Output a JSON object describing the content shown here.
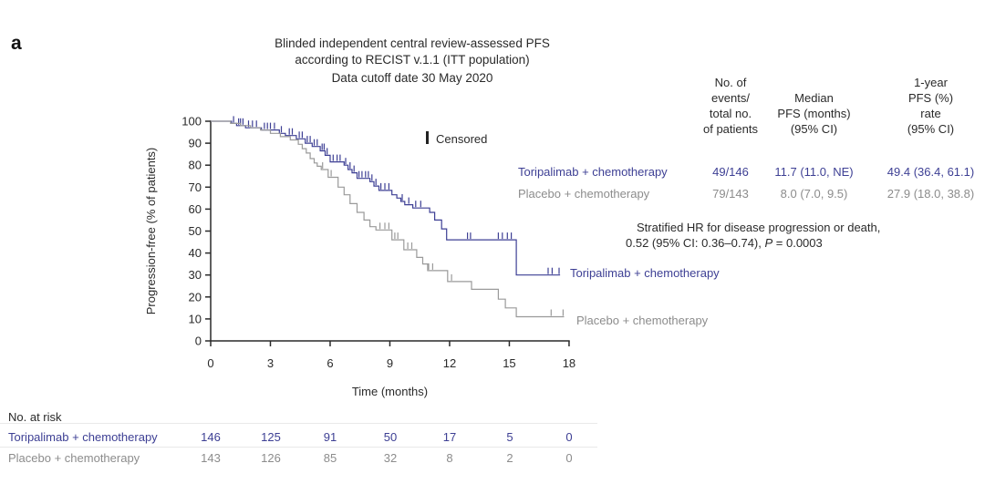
{
  "panel_label": "a",
  "colors": {
    "dark": "#2a2a2a",
    "toripalimab": "#3d3f94",
    "placebo_text": "#8c8c8c",
    "placebo_curve": "#9a9a9a"
  },
  "chart_data": {
    "type": "line",
    "subtype": "kaplan-meier-step",
    "title_lines": [
      "Blinded independent central review-assessed PFS",
      "according to RECIST v.1.1 (ITT population)",
      "Data cutoff date 30 May 2020"
    ],
    "censored_legend": "Censored",
    "x": {
      "label": "Time (months)",
      "ticks": [
        0,
        3,
        6,
        9,
        12,
        15,
        18
      ],
      "range": [
        0,
        18
      ]
    },
    "y": {
      "label": "Progression-free (% of patients)",
      "ticks": [
        0,
        10,
        20,
        30,
        40,
        50,
        60,
        70,
        80,
        90,
        100
      ],
      "range": [
        0,
        100
      ]
    },
    "grid": false,
    "series": [
      {
        "name": "Toripalimab + chemotherapy",
        "color": "#3d3f94",
        "points": [
          [
            0,
            100
          ],
          [
            1.05,
            99
          ],
          [
            1.3,
            98
          ],
          [
            1.75,
            97
          ],
          [
            2.55,
            96
          ],
          [
            3.45,
            94.5
          ],
          [
            3.75,
            93.5
          ],
          [
            4.3,
            92
          ],
          [
            4.75,
            90
          ],
          [
            5.1,
            88.5
          ],
          [
            5.5,
            86.5
          ],
          [
            5.75,
            84.5
          ],
          [
            6.0,
            81.5
          ],
          [
            6.7,
            80
          ],
          [
            6.9,
            78
          ],
          [
            7.1,
            76.5
          ],
          [
            7.35,
            74
          ],
          [
            8.0,
            72.5
          ],
          [
            8.2,
            70.5
          ],
          [
            8.45,
            68.5
          ],
          [
            9.1,
            66.5
          ],
          [
            9.35,
            65
          ],
          [
            9.55,
            63.5
          ],
          [
            9.75,
            62
          ],
          [
            10.15,
            60.5
          ],
          [
            11.0,
            58.5
          ],
          [
            11.25,
            55
          ],
          [
            11.6,
            51
          ],
          [
            11.85,
            46
          ],
          [
            15.35,
            30
          ]
        ],
        "end_month": 17.55,
        "censors": [
          [
            1.15,
            99
          ],
          [
            1.4,
            98
          ],
          [
            1.5,
            98
          ],
          [
            1.62,
            98
          ],
          [
            1.9,
            97
          ],
          [
            2.1,
            97
          ],
          [
            2.3,
            97
          ],
          [
            2.7,
            96
          ],
          [
            2.85,
            96
          ],
          [
            3.0,
            96
          ],
          [
            3.2,
            96
          ],
          [
            3.55,
            94.5
          ],
          [
            3.95,
            93.5
          ],
          [
            4.1,
            93.5
          ],
          [
            4.45,
            92
          ],
          [
            4.6,
            92
          ],
          [
            4.85,
            90
          ],
          [
            5.0,
            90
          ],
          [
            5.2,
            88.5
          ],
          [
            5.35,
            88.5
          ],
          [
            5.6,
            86.5
          ],
          [
            5.7,
            86.5
          ],
          [
            5.85,
            84.5
          ],
          [
            6.15,
            81.5
          ],
          [
            6.35,
            81.5
          ],
          [
            6.5,
            81.5
          ],
          [
            6.78,
            80
          ],
          [
            7.0,
            78
          ],
          [
            7.2,
            76.5
          ],
          [
            7.45,
            74
          ],
          [
            7.6,
            74
          ],
          [
            7.78,
            74
          ],
          [
            7.92,
            74
          ],
          [
            8.1,
            72.5
          ],
          [
            8.3,
            70.5
          ],
          [
            8.55,
            68.5
          ],
          [
            8.75,
            68.5
          ],
          [
            8.95,
            68.5
          ],
          [
            9.62,
            63.5
          ],
          [
            9.95,
            62
          ],
          [
            10.3,
            60.5
          ],
          [
            10.55,
            60.5
          ],
          [
            12.9,
            46
          ],
          [
            13.05,
            46
          ],
          [
            14.45,
            46
          ],
          [
            14.65,
            46
          ],
          [
            14.9,
            46
          ],
          [
            15.1,
            46
          ],
          [
            16.95,
            30
          ],
          [
            17.15,
            30
          ],
          [
            17.5,
            30
          ]
        ]
      },
      {
        "name": "Placebo + chemotherapy",
        "color": "#9a9a9a",
        "points": [
          [
            0,
            100
          ],
          [
            1.0,
            99
          ],
          [
            1.5,
            98
          ],
          [
            2.0,
            97
          ],
          [
            2.5,
            96
          ],
          [
            3.0,
            94.5
          ],
          [
            3.5,
            93
          ],
          [
            4.0,
            91.5
          ],
          [
            4.4,
            89.5
          ],
          [
            4.6,
            87.5
          ],
          [
            4.8,
            85.5
          ],
          [
            5.0,
            83
          ],
          [
            5.2,
            81
          ],
          [
            5.35,
            79.5
          ],
          [
            5.55,
            78
          ],
          [
            5.9,
            74.5
          ],
          [
            6.4,
            70
          ],
          [
            6.7,
            66.5
          ],
          [
            7.0,
            62.5
          ],
          [
            7.35,
            58.5
          ],
          [
            7.7,
            55
          ],
          [
            8.0,
            52
          ],
          [
            8.3,
            50.5
          ],
          [
            9.1,
            46
          ],
          [
            9.7,
            41.5
          ],
          [
            10.35,
            38
          ],
          [
            10.65,
            35
          ],
          [
            10.9,
            32
          ],
          [
            11.9,
            27
          ],
          [
            13.1,
            23.5
          ],
          [
            14.45,
            19
          ],
          [
            14.8,
            15
          ],
          [
            15.35,
            11
          ]
        ],
        "end_month": 17.75,
        "censors": [
          [
            5.62,
            78
          ],
          [
            6.05,
            74.5
          ],
          [
            8.5,
            50.5
          ],
          [
            8.75,
            50.5
          ],
          [
            8.95,
            50.5
          ],
          [
            9.25,
            46
          ],
          [
            9.4,
            46
          ],
          [
            9.9,
            41.5
          ],
          [
            10.1,
            41.5
          ],
          [
            10.95,
            32
          ],
          [
            11.15,
            32
          ],
          [
            12.1,
            27
          ],
          [
            17.1,
            11
          ],
          [
            17.7,
            11
          ]
        ]
      }
    ]
  },
  "summary_table": {
    "col_headers": [
      "No. of\nevents/\ntotal no.\nof patients",
      "Median\nPFS (months)\n(95% CI)",
      "1-year\nPFS (%)\nrate\n(95% CI)"
    ],
    "rows": [
      {
        "label": "Toripalimab + chemotherapy",
        "events": "49/146",
        "median": "11.7 (11.0, NE)",
        "one_year": "49.4 (36.4, 61.1)"
      },
      {
        "label": "Placebo + chemotherapy",
        "events": "79/143",
        "median": "8.0 (7.0, 9.5)",
        "one_year": "27.9 (18.0, 38.8)"
      }
    ]
  },
  "hr_note": {
    "line1": "Stratified HR for disease progression or death,",
    "line2_pre": "0.52 (95% CI: 0.36–0.74), ",
    "p_symbol": "P",
    "line2_post": " = 0.0003"
  },
  "risk_table": {
    "title": "No. at risk",
    "rows": [
      {
        "label": "Toripalimab + chemotherapy",
        "counts": [
          "146",
          "125",
          "91",
          "50",
          "17",
          "5",
          "0"
        ]
      },
      {
        "label": "Placebo + chemotherapy",
        "counts": [
          "143",
          "126",
          "85",
          "32",
          "8",
          "2",
          "0"
        ]
      }
    ]
  }
}
